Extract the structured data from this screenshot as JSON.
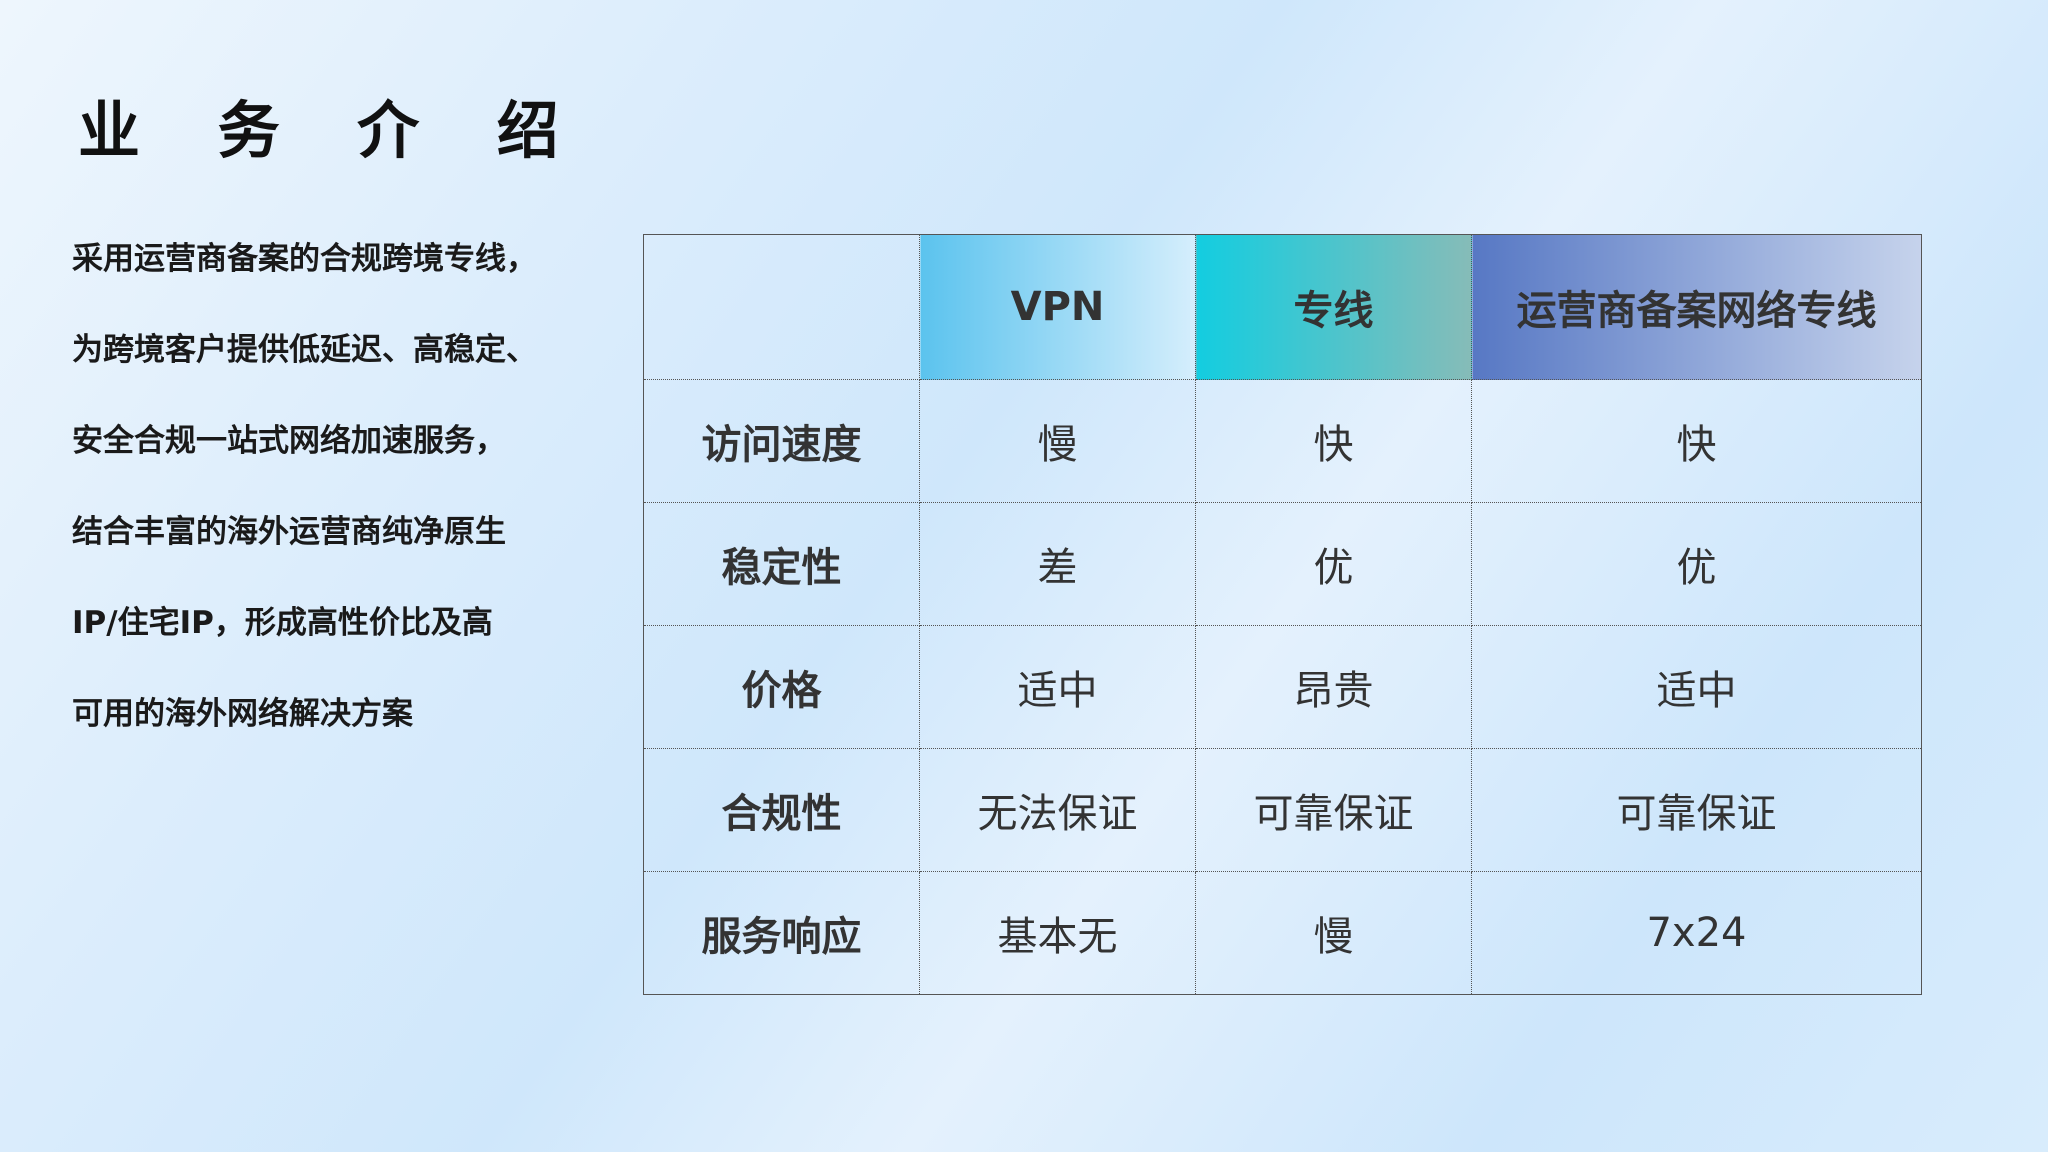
{
  "title": "业 务 介 绍",
  "description_lines": [
    "采用运营商备案的合规跨境专线，",
    "为跨境客户提供低延迟、高稳定、",
    "安全合规一站式网络加速服务，",
    "结合丰富的海外运营商纯净原生",
    "IP/住宅IP，形成高性价比及高",
    "可用的海外网络解决方案"
  ],
  "table": {
    "headers": [
      "",
      "VPN",
      "专线",
      "运营商备案网络专线"
    ],
    "rows": [
      [
        "访问速度",
        "慢",
        "快",
        "快"
      ],
      [
        "稳定性",
        "差",
        "优",
        "优"
      ],
      [
        "价格",
        "适中",
        "昂贵",
        "适中"
      ],
      [
        "合规性",
        "无法保证",
        "可靠保证",
        "可靠保证"
      ],
      [
        "服务响应",
        "基本无",
        "慢",
        "7x24"
      ]
    ],
    "header_colors": [
      "#5bc3ee",
      "#13cde0",
      "#5778c4"
    ]
  }
}
